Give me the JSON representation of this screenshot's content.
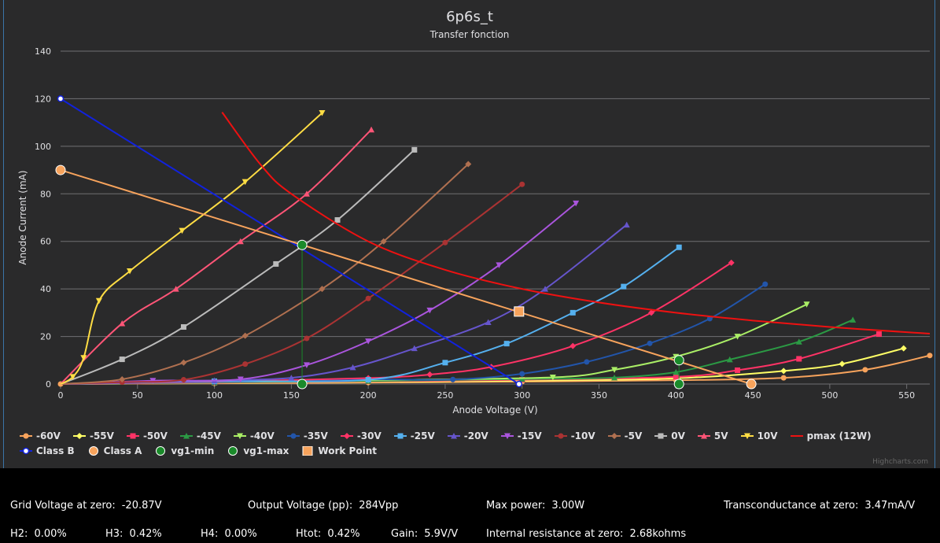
{
  "chart_data": {
    "type": "line",
    "title": "6p6s_t",
    "subtitle": "Transfer fonction",
    "xlabel": "Anode Voltage (V)",
    "ylabel": "Anode Current (mA)",
    "xlim": [
      0,
      565
    ],
    "ylim": [
      0,
      140
    ],
    "xticks": [
      0,
      50,
      100,
      150,
      200,
      250,
      300,
      350,
      400,
      450,
      500,
      550
    ],
    "yticks": [
      0,
      20,
      40,
      60,
      80,
      100,
      120,
      140
    ],
    "grid": "y",
    "legend_position": "bottom",
    "series": [
      {
        "name": "-60V",
        "color": "#f7a35c",
        "marker": "circle",
        "points": [
          [
            0,
            0
          ],
          [
            100,
            0.3
          ],
          [
            200,
            0.6
          ],
          [
            300,
            1
          ],
          [
            400,
            1.6
          ],
          [
            470,
            2.6
          ],
          [
            523,
            6
          ],
          [
            565,
            12
          ]
        ]
      },
      {
        "name": "-55V",
        "color": "#ffff66",
        "marker": "diamond",
        "points": [
          [
            0,
            0
          ],
          [
            100,
            0.4
          ],
          [
            200,
            0.9
          ],
          [
            300,
            1.4
          ],
          [
            400,
            2.4
          ],
          [
            470,
            5.5
          ],
          [
            508,
            8.5
          ],
          [
            548,
            15
          ]
        ]
      },
      {
        "name": "-50V",
        "color": "#ff3366",
        "marker": "square",
        "points": [
          [
            0,
            0
          ],
          [
            100,
            0.5
          ],
          [
            200,
            1.1
          ],
          [
            300,
            1.8
          ],
          [
            400,
            3
          ],
          [
            440,
            5.8
          ],
          [
            480,
            10.6
          ],
          [
            532,
            21
          ]
        ]
      },
      {
        "name": "-45V",
        "color": "#2b9a44",
        "marker": "triangle",
        "points": [
          [
            0,
            0
          ],
          [
            100,
            0.6
          ],
          [
            200,
            1.3
          ],
          [
            300,
            2.1
          ],
          [
            360,
            2.7
          ],
          [
            400,
            5
          ],
          [
            435,
            10.3
          ],
          [
            480,
            17.8
          ],
          [
            515,
            27
          ]
        ]
      },
      {
        "name": "-40V",
        "color": "#aaee66",
        "marker": "triangle-down",
        "points": [
          [
            0,
            0
          ],
          [
            100,
            0.7
          ],
          [
            200,
            1.6
          ],
          [
            320,
            2.8
          ],
          [
            360,
            6
          ],
          [
            400,
            11.5
          ],
          [
            440,
            20
          ],
          [
            485,
            33.5
          ]
        ]
      },
      {
        "name": "-35V",
        "color": "#2255aa",
        "marker": "circle",
        "points": [
          [
            0,
            0
          ],
          [
            100,
            0.8
          ],
          [
            200,
            1.9
          ],
          [
            255,
            1.9
          ],
          [
            300,
            4.3
          ],
          [
            342,
            9.3
          ],
          [
            383,
            17.1
          ],
          [
            422,
            27.5
          ],
          [
            458,
            42
          ]
        ]
      },
      {
        "name": "-30V",
        "color": "#ff3366",
        "marker": "diamond",
        "points": [
          [
            0,
            0
          ],
          [
            100,
            1
          ],
          [
            200,
            2.5
          ],
          [
            240,
            4
          ],
          [
            280,
            7.2
          ],
          [
            333,
            16
          ],
          [
            384,
            30
          ],
          [
            436,
            51
          ]
        ]
      },
      {
        "name": "-25V",
        "color": "#55b0ee",
        "marker": "square",
        "points": [
          [
            0,
            0
          ],
          [
            100,
            1.2
          ],
          [
            200,
            1.8
          ],
          [
            250,
            9
          ],
          [
            290,
            17
          ],
          [
            333,
            30
          ],
          [
            366,
            41
          ],
          [
            402,
            57.5
          ]
        ]
      },
      {
        "name": "-20V",
        "color": "#6655cc",
        "marker": "triangle",
        "points": [
          [
            0,
            0
          ],
          [
            100,
            1.5
          ],
          [
            150,
            2.6
          ],
          [
            190,
            7
          ],
          [
            230,
            15
          ],
          [
            278,
            26
          ],
          [
            315,
            40
          ],
          [
            368,
            67
          ]
        ]
      },
      {
        "name": "-15V",
        "color": "#aa55dd",
        "marker": "triangle-down",
        "points": [
          [
            0,
            0
          ],
          [
            60,
            1.4
          ],
          [
            117,
            2
          ],
          [
            160,
            8
          ],
          [
            200,
            18
          ],
          [
            240,
            31
          ],
          [
            285,
            50
          ],
          [
            335,
            76
          ]
        ]
      },
      {
        "name": "-10V",
        "color": "#aa3333",
        "marker": "circle",
        "points": [
          [
            0,
            0
          ],
          [
            40,
            0.8
          ],
          [
            80,
            1.8
          ],
          [
            120,
            8.4
          ],
          [
            160,
            19.2
          ],
          [
            200,
            36
          ],
          [
            250,
            59.5
          ],
          [
            300,
            84
          ]
        ]
      },
      {
        "name": "-5V",
        "color": "#b07050",
        "marker": "diamond",
        "points": [
          [
            0,
            0
          ],
          [
            40,
            2
          ],
          [
            80,
            9
          ],
          [
            120,
            20.3
          ],
          [
            170,
            40
          ],
          [
            210,
            60
          ],
          [
            265,
            92.5
          ]
        ]
      },
      {
        "name": "0V",
        "color": "#bbbbbb",
        "marker": "square",
        "points": [
          [
            0,
            0
          ],
          [
            40,
            10.4
          ],
          [
            80,
            24
          ],
          [
            140,
            50.5
          ],
          [
            180,
            69
          ],
          [
            230,
            98.5
          ]
        ]
      },
      {
        "name": "5V",
        "color": "#ff5577",
        "marker": "triangle",
        "points": [
          [
            0,
            0
          ],
          [
            40,
            25.5
          ],
          [
            75,
            40
          ],
          [
            117,
            60
          ],
          [
            160,
            80
          ],
          [
            202,
            107
          ]
        ]
      },
      {
        "name": "10V",
        "color": "#ffdd44",
        "marker": "triangle-down",
        "points": [
          [
            0,
            0
          ],
          [
            8,
            3
          ],
          [
            15,
            11
          ],
          [
            25,
            35
          ],
          [
            45,
            47.5
          ],
          [
            79,
            64.5
          ],
          [
            120,
            85
          ],
          [
            170,
            114
          ]
        ]
      },
      {
        "name": "pmax (12W)",
        "color": "#ee1111",
        "marker": "none",
        "points": [
          [
            105,
            114.3
          ],
          [
            130,
            92.3
          ],
          [
            150,
            80
          ],
          [
            200,
            60
          ],
          [
            250,
            48
          ],
          [
            300,
            40
          ],
          [
            350,
            34.3
          ],
          [
            400,
            30
          ],
          [
            450,
            26.7
          ],
          [
            500,
            24
          ],
          [
            550,
            21.8
          ],
          [
            565,
            21.2
          ]
        ]
      },
      {
        "name": "Class B",
        "color": "#1122dd",
        "marker": "hollow-circle",
        "points": [
          [
            0,
            120
          ],
          [
            298,
            0
          ]
        ]
      },
      {
        "name": "Class A",
        "color": "#f7a35c",
        "marker": "big-circle",
        "points": [
          [
            0,
            90
          ],
          [
            449,
            0
          ]
        ]
      },
      {
        "name": "vg1-min",
        "color": "#1a8a2a",
        "marker": "big-circle",
        "points": [
          [
            157,
            58.5
          ],
          [
            157,
            0
          ]
        ]
      },
      {
        "name": "vg1-max",
        "color": "#1a8a2a",
        "marker": "big-circle",
        "points": [
          [
            402,
            10
          ],
          [
            402,
            0
          ]
        ]
      },
      {
        "name": "Work Point",
        "color": "#f7a35c",
        "marker": "big-square",
        "points": [
          [
            298,
            30.5
          ]
        ]
      }
    ],
    "credits": "Highcharts.com"
  },
  "stats": {
    "row1": [
      {
        "label": "Grid Voltage at zero:",
        "value": "-20.87V"
      },
      {
        "label": "Output Voltage (pp):",
        "value": "284Vpp"
      },
      {
        "label": "Max power:",
        "value": "3.00W"
      },
      {
        "label": "Transconductance at zero:",
        "value": "3.47mA/V"
      }
    ],
    "row2": [
      {
        "label": "H2:",
        "value": "0.00%"
      },
      {
        "label": "H3:",
        "value": "0.42%"
      },
      {
        "label": "H4:",
        "value": "0.00%"
      },
      {
        "label": "Htot:",
        "value": "0.42%"
      },
      {
        "label": "Gain:",
        "value": "5.9V/V"
      },
      {
        "label": "Internal resistance at zero:",
        "value": "2.68kohms"
      }
    ]
  }
}
